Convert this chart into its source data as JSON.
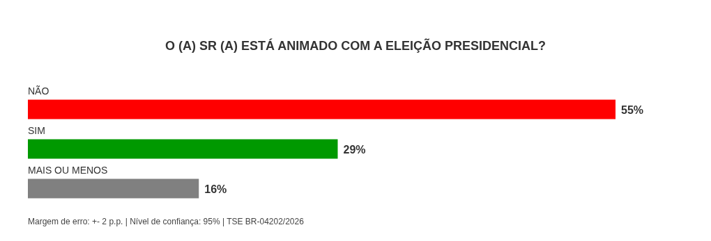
{
  "chart_data": {
    "type": "bar",
    "orientation": "horizontal",
    "title": "O (A) SR (A) ESTÁ ANIMADO COM A ELEIÇÃO PRESIDENCIAL?",
    "categories": [
      "NÃO",
      "SIM",
      "MAIS OU MENOS"
    ],
    "values": [
      55,
      29,
      16
    ],
    "colors": [
      "#ff0000",
      "#009900",
      "#808080"
    ],
    "value_labels": [
      "55%",
      "29%",
      "16%"
    ],
    "annotations": [
      "Margem de erro: +- 2 p.p. | Nível de confiança: 95% | TSE BR-04202/2026"
    ]
  }
}
